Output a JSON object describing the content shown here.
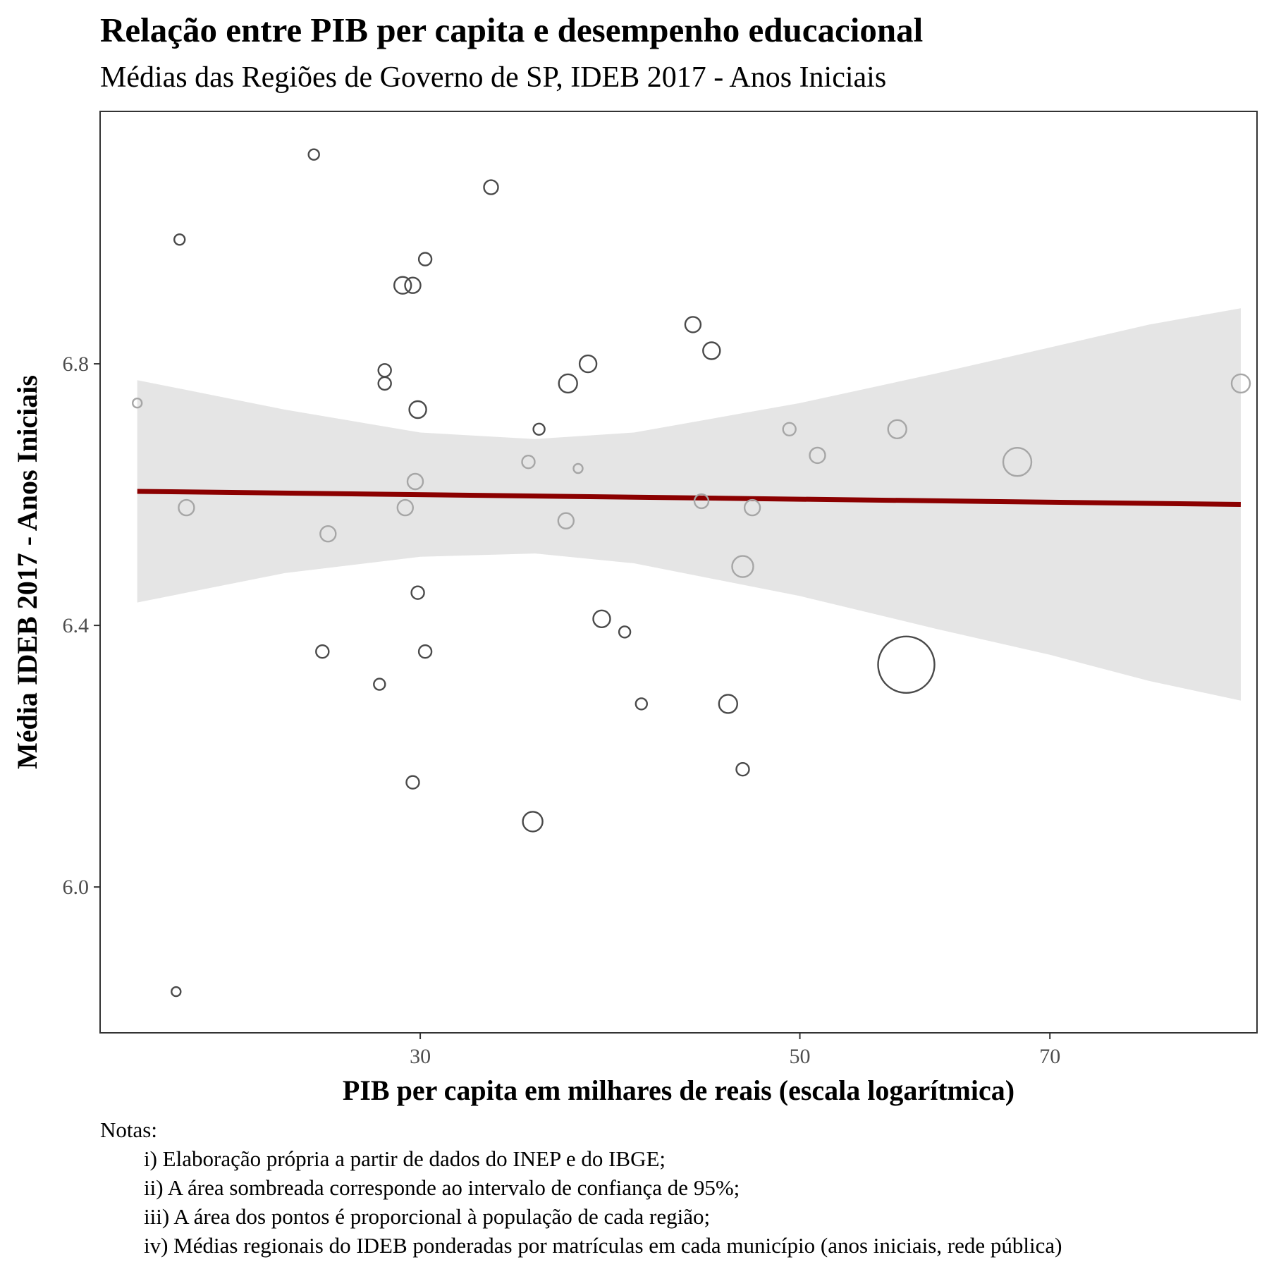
{
  "chart_data": {
    "type": "scatter",
    "title": "Relação entre PIB per capita e desempenho educacional",
    "subtitle": "Médias das Regiões de Governo de SP, IDEB 2017 - Anos Iniciais",
    "xlabel": "PIB per capita em milhares de reais (escala logarítmica)",
    "ylabel": "Média IDEB 2017 - Anos Iniciais",
    "x_scale": "log",
    "xlim": [
      19.5,
      92.5
    ],
    "ylim": [
      5.777,
      7.186
    ],
    "x_ticks": [
      30,
      50,
      70
    ],
    "x_tick_labels": [
      "30",
      "50",
      "70"
    ],
    "y_ticks": [
      6.0,
      6.4,
      6.8
    ],
    "y_tick_labels": [
      "6.0",
      "6.4",
      "6.8"
    ],
    "grid": false,
    "legend": "none",
    "point_size_meaning": "population",
    "points": [
      {
        "x": 26.0,
        "y": 7.12,
        "size": 1.5
      },
      {
        "x": 33.0,
        "y": 7.07,
        "size": 2.0
      },
      {
        "x": 21.7,
        "y": 6.99,
        "size": 1.5
      },
      {
        "x": 30.2,
        "y": 6.96,
        "size": 1.8
      },
      {
        "x": 29.3,
        "y": 6.92,
        "size": 2.4
      },
      {
        "x": 29.7,
        "y": 6.92,
        "size": 2.2
      },
      {
        "x": 43.3,
        "y": 6.86,
        "size": 2.2
      },
      {
        "x": 44.4,
        "y": 6.82,
        "size": 2.4
      },
      {
        "x": 37.6,
        "y": 6.8,
        "size": 2.4
      },
      {
        "x": 28.6,
        "y": 6.79,
        "size": 1.8
      },
      {
        "x": 28.6,
        "y": 6.77,
        "size": 1.8
      },
      {
        "x": 36.6,
        "y": 6.77,
        "size": 2.6
      },
      {
        "x": 20.5,
        "y": 6.74,
        "size": 1.3
      },
      {
        "x": 29.9,
        "y": 6.73,
        "size": 2.4
      },
      {
        "x": 35.2,
        "y": 6.7,
        "size": 1.6
      },
      {
        "x": 90.5,
        "y": 6.77,
        "size": 2.6
      },
      {
        "x": 49.3,
        "y": 6.7,
        "size": 1.8
      },
      {
        "x": 57.0,
        "y": 6.7,
        "size": 2.6
      },
      {
        "x": 51.2,
        "y": 6.66,
        "size": 2.2
      },
      {
        "x": 67.0,
        "y": 6.65,
        "size": 4.0
      },
      {
        "x": 34.7,
        "y": 6.65,
        "size": 1.8
      },
      {
        "x": 37.1,
        "y": 6.64,
        "size": 1.3
      },
      {
        "x": 29.8,
        "y": 6.62,
        "size": 2.2
      },
      {
        "x": 21.9,
        "y": 6.58,
        "size": 2.2
      },
      {
        "x": 29.4,
        "y": 6.58,
        "size": 2.2
      },
      {
        "x": 43.8,
        "y": 6.59,
        "size": 2.0
      },
      {
        "x": 46.9,
        "y": 6.58,
        "size": 2.2
      },
      {
        "x": 36.5,
        "y": 6.56,
        "size": 2.2
      },
      {
        "x": 26.5,
        "y": 6.54,
        "size": 2.2
      },
      {
        "x": 46.3,
        "y": 6.49,
        "size": 3.0
      },
      {
        "x": 29.9,
        "y": 6.45,
        "size": 1.8
      },
      {
        "x": 38.3,
        "y": 6.41,
        "size": 2.4
      },
      {
        "x": 39.5,
        "y": 6.39,
        "size": 1.6
      },
      {
        "x": 26.3,
        "y": 6.36,
        "size": 1.8
      },
      {
        "x": 30.2,
        "y": 6.36,
        "size": 1.8
      },
      {
        "x": 57.7,
        "y": 6.34,
        "size": 8.0
      },
      {
        "x": 28.4,
        "y": 6.31,
        "size": 1.6
      },
      {
        "x": 40.4,
        "y": 6.28,
        "size": 1.6
      },
      {
        "x": 45.4,
        "y": 6.28,
        "size": 2.6
      },
      {
        "x": 46.3,
        "y": 6.18,
        "size": 1.8
      },
      {
        "x": 29.7,
        "y": 6.16,
        "size": 1.8
      },
      {
        "x": 34.9,
        "y": 6.1,
        "size": 2.8
      },
      {
        "x": 21.6,
        "y": 5.84,
        "size": 1.3
      }
    ],
    "fit_line": {
      "x": [
        20.5,
        90.5
      ],
      "y": [
        6.605,
        6.585
      ],
      "color": "#8b0000"
    },
    "confidence_band": {
      "x": [
        20.5,
        25,
        30,
        35,
        40,
        50,
        60,
        70,
        80,
        90.5
      ],
      "upper": [
        6.775,
        6.73,
        6.695,
        6.685,
        6.695,
        6.74,
        6.785,
        6.825,
        6.86,
        6.885
      ],
      "lower": [
        6.435,
        6.48,
        6.505,
        6.51,
        6.495,
        6.445,
        6.395,
        6.355,
        6.315,
        6.285
      ],
      "color": "#e5e5e5"
    }
  },
  "notes": {
    "heading": "Notas:",
    "items": [
      "i) Elaboração própria a partir de dados do INEP e do IBGE;",
      "ii) A área sombreada corresponde ao intervalo de confiança de 95%;",
      "iii) A área dos pontos é proporcional à população de cada região;",
      "iv) Médias regionais do IDEB ponderadas por matrículas em cada município (anos iniciais, rede pública)"
    ]
  }
}
